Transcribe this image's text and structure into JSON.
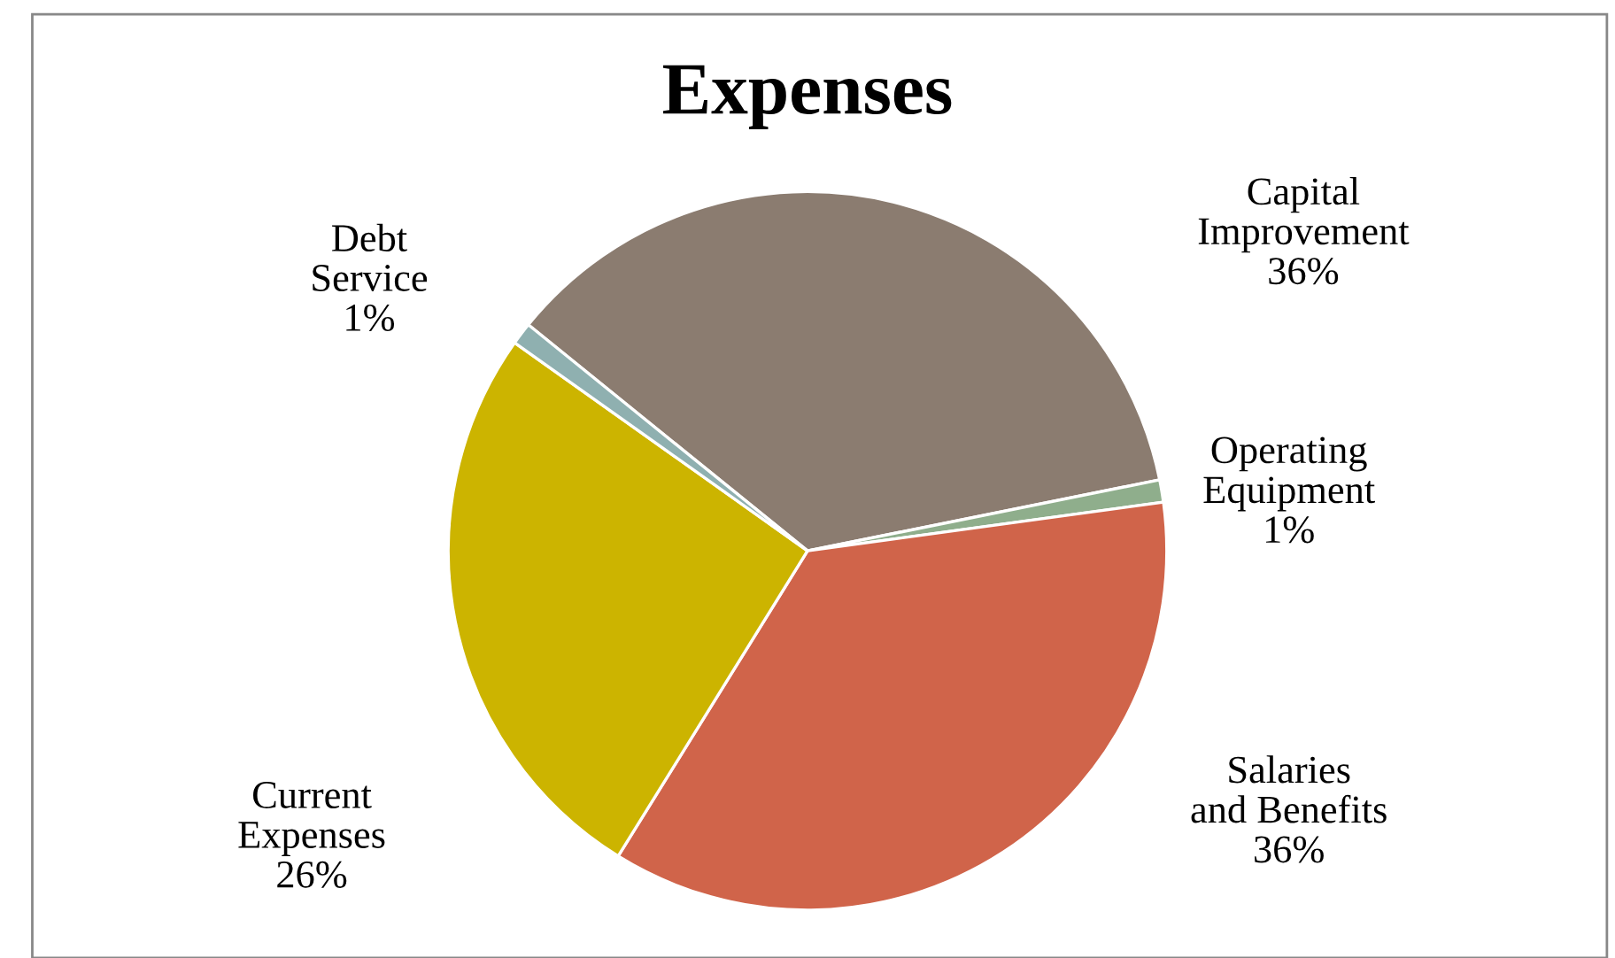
{
  "chart_data": {
    "type": "pie",
    "title": "Expenses",
    "categories": [
      "Capital\nImprovement",
      "Operating\nEquipment",
      "Salaries\nand Benefits",
      "Current\nExpenses",
      "Debt\nService"
    ],
    "values": [
      36,
      1,
      36,
      26,
      1
    ],
    "colors": [
      "#8b7c70",
      "#8fae8c",
      "#d0644a",
      "#ccb400",
      "#8fb0b0"
    ],
    "value_labels": [
      "36%",
      "1%",
      "36%",
      "26%",
      "1%"
    ]
  }
}
